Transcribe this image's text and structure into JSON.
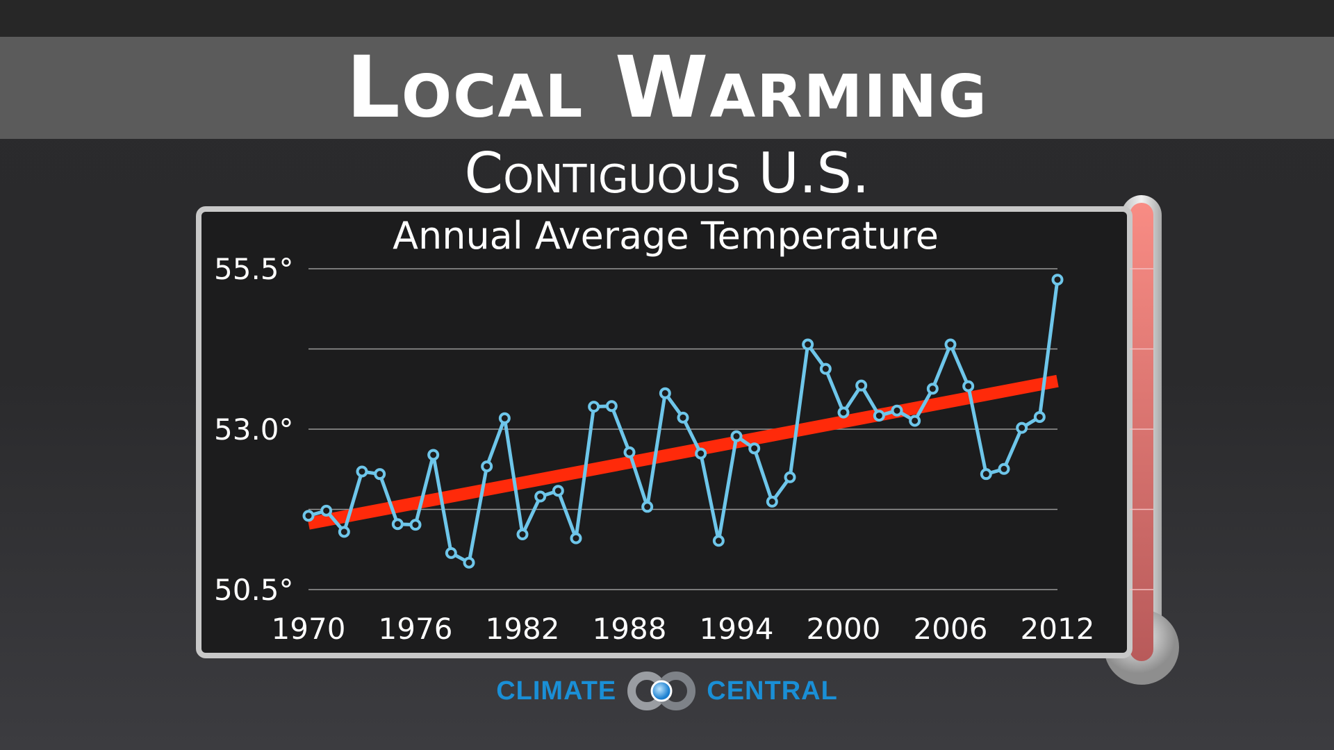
{
  "title": "Local Warming",
  "subtitle": "Contiguous U.S.",
  "logo": {
    "left": "CLIMATE",
    "right": "CENTRAL",
    "color": "#1a8fd6"
  },
  "colors": {
    "series": "#6ec6ea",
    "trend": "#ff2a0a",
    "grid": "#9a9a9a",
    "thermometer": "#e06868"
  },
  "chart_data": {
    "type": "line",
    "title": "Annual Average Temperature",
    "xlabel": "",
    "ylabel": "",
    "xlim": [
      1970,
      2012
    ],
    "ylim": [
      50.5,
      55.5
    ],
    "x_ticks": [
      "1970",
      "1976",
      "1982",
      "1988",
      "1994",
      "2000",
      "2006",
      "2012"
    ],
    "y_ticks": [
      "50.5°",
      "53.0°",
      "55.5°"
    ],
    "gridlines_y": [
      50.5,
      51.75,
      53.0,
      54.25,
      55.5
    ],
    "grid": true,
    "x": [
      1970,
      1971,
      1972,
      1973,
      1974,
      1975,
      1976,
      1977,
      1978,
      1979,
      1980,
      1981,
      1982,
      1983,
      1984,
      1985,
      1986,
      1987,
      1988,
      1989,
      1990,
      1991,
      1992,
      1993,
      1994,
      1995,
      1996,
      1997,
      1998,
      1999,
      2000,
      2001,
      2002,
      2003,
      2004,
      2005,
      2006,
      2007,
      2008,
      2009,
      2010,
      2011,
      2012
    ],
    "series": [
      {
        "values": [
          51.65,
          51.73,
          51.4,
          52.34,
          52.3,
          51.52,
          51.51,
          52.6,
          51.07,
          50.92,
          52.42,
          53.17,
          51.36,
          51.95,
          52.04,
          51.3,
          53.35,
          53.36,
          52.64,
          51.79,
          53.56,
          53.18,
          52.62,
          51.26,
          52.89,
          52.7,
          51.87,
          52.25,
          54.32,
          53.94,
          53.26,
          53.68,
          53.21,
          53.29,
          53.13,
          53.63,
          54.32,
          53.67,
          52.3,
          52.38,
          53.02,
          53.19,
          55.33
        ]
      }
    ],
    "trend": {
      "x": [
        1970,
        2012
      ],
      "y": [
        51.53,
        53.75
      ]
    }
  }
}
